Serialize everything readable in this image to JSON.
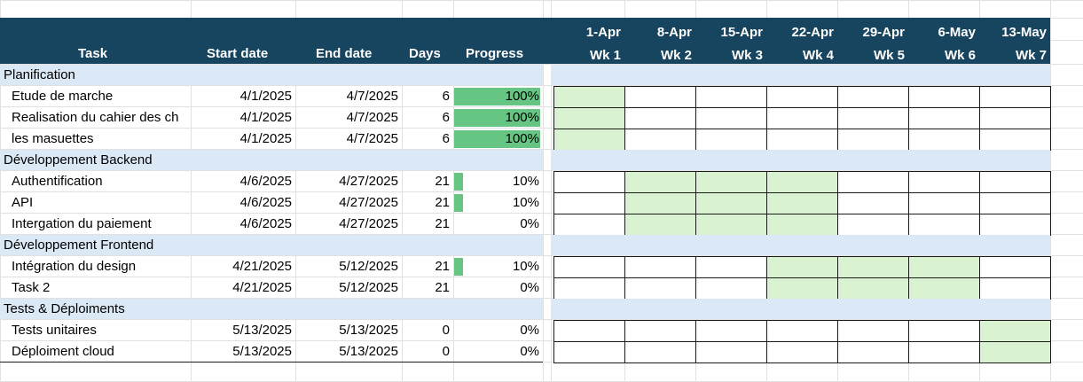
{
  "headers": {
    "task": "Task",
    "start": "Start date",
    "end": "End date",
    "days": "Days",
    "progress": "Progress"
  },
  "weeks": [
    {
      "date": "1-Apr",
      "wk": "Wk 1"
    },
    {
      "date": "8-Apr",
      "wk": "Wk 2"
    },
    {
      "date": "15-Apr",
      "wk": "Wk 3"
    },
    {
      "date": "22-Apr",
      "wk": "Wk 4"
    },
    {
      "date": "29-Apr",
      "wk": "Wk 5"
    },
    {
      "date": "6-May",
      "wk": "Wk 6"
    },
    {
      "date": "13-May",
      "wk": "Wk 7"
    }
  ],
  "rows": [
    {
      "type": "phase",
      "name": "Planification"
    },
    {
      "type": "task",
      "name": "Etude de marche",
      "start": "4/1/2025",
      "end": "4/7/2025",
      "days": "6",
      "progress": 1.0,
      "progress_label": "100%",
      "weeks_active": [
        1
      ]
    },
    {
      "type": "task",
      "name": "Realisation du cahier des ch",
      "start": "4/1/2025",
      "end": "4/7/2025",
      "days": "6",
      "progress": 1.0,
      "progress_label": "100%",
      "weeks_active": [
        1
      ]
    },
    {
      "type": "task",
      "name": "les masuettes",
      "start": "4/1/2025",
      "end": "4/7/2025",
      "days": "6",
      "progress": 1.0,
      "progress_label": "100%",
      "weeks_active": [
        1
      ]
    },
    {
      "type": "phase",
      "name": "Développement Backend"
    },
    {
      "type": "task",
      "name": "Authentification",
      "start": "4/6/2025",
      "end": "4/27/2025",
      "days": "21",
      "progress": 0.1,
      "progress_label": "10%",
      "weeks_active": [
        2,
        3,
        4
      ]
    },
    {
      "type": "task",
      "name": "API",
      "start": "4/6/2025",
      "end": "4/27/2025",
      "days": "21",
      "progress": 0.1,
      "progress_label": "10%",
      "weeks_active": [
        2,
        3,
        4
      ]
    },
    {
      "type": "task",
      "name": "Intergation du paiement",
      "start": "4/6/2025",
      "end": "4/27/2025",
      "days": "21",
      "progress": 0.0,
      "progress_label": "0%",
      "weeks_active": [
        2,
        3,
        4
      ]
    },
    {
      "type": "phase",
      "name": "Développement Frontend"
    },
    {
      "type": "task",
      "name": "Intégration du design",
      "start": "4/21/2025",
      "end": "5/12/2025",
      "days": "21",
      "progress": 0.1,
      "progress_label": "10%",
      "weeks_active": [
        4,
        5,
        6
      ]
    },
    {
      "type": "task",
      "name": "Task 2",
      "start": "4/21/2025",
      "end": "5/12/2025",
      "days": "21",
      "progress": 0.0,
      "progress_label": "0%",
      "weeks_active": [
        4,
        5,
        6
      ]
    },
    {
      "type": "phase",
      "name": "Tests & Déploiments"
    },
    {
      "type": "task",
      "name": "Tests unitaires",
      "start": "5/13/2025",
      "end": "5/13/2025",
      "days": "0",
      "progress": 0.0,
      "progress_label": "0%",
      "weeks_active": [
        7
      ]
    },
    {
      "type": "task",
      "name": "Déploiment cloud",
      "start": "5/13/2025",
      "end": "5/13/2025",
      "days": "0",
      "progress": 0.0,
      "progress_label": "0%",
      "weeks_active": [
        7
      ]
    }
  ],
  "colors": {
    "header_bg": "#17445e",
    "phase_bg": "#dbe8f5",
    "progress_bar": "#66c582",
    "gantt_active": "#d9f2d0"
  }
}
